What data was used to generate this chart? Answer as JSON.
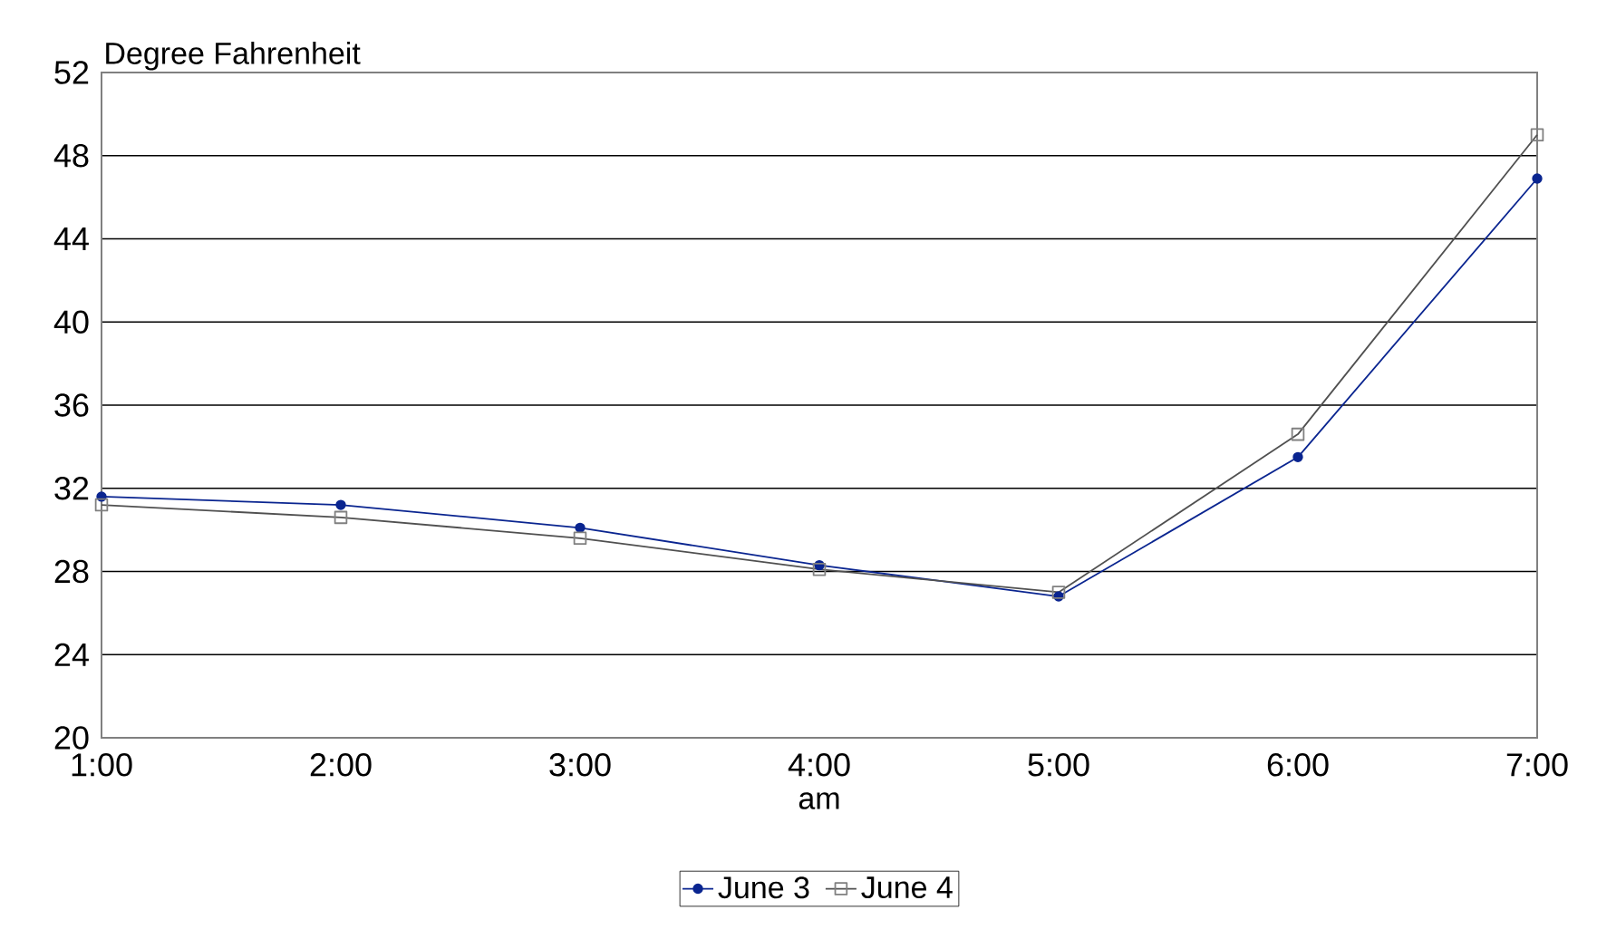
{
  "chart_data": {
    "type": "line",
    "ylabel": "Degree Fahrenheit",
    "xlabel": "am",
    "categories": [
      "1:00",
      "2:00",
      "3:00",
      "4:00",
      "5:00",
      "6:00",
      "7:00"
    ],
    "series": [
      {
        "name": "June 3",
        "color": "#0a2590",
        "marker": "circle",
        "values": [
          31.6,
          31.2,
          30.1,
          28.3,
          26.8,
          33.5,
          46.9
        ]
      },
      {
        "name": "June 4",
        "color": "#505050",
        "marker": "square",
        "values": [
          31.2,
          30.6,
          29.6,
          28.1,
          27.0,
          34.6,
          49.0
        ]
      }
    ],
    "ylim": [
      20,
      52
    ],
    "yticks": [
      20,
      24,
      28,
      32,
      36,
      40,
      44,
      48,
      52
    ],
    "grid": "y",
    "legend": "bottom",
    "line_style": "solid"
  }
}
